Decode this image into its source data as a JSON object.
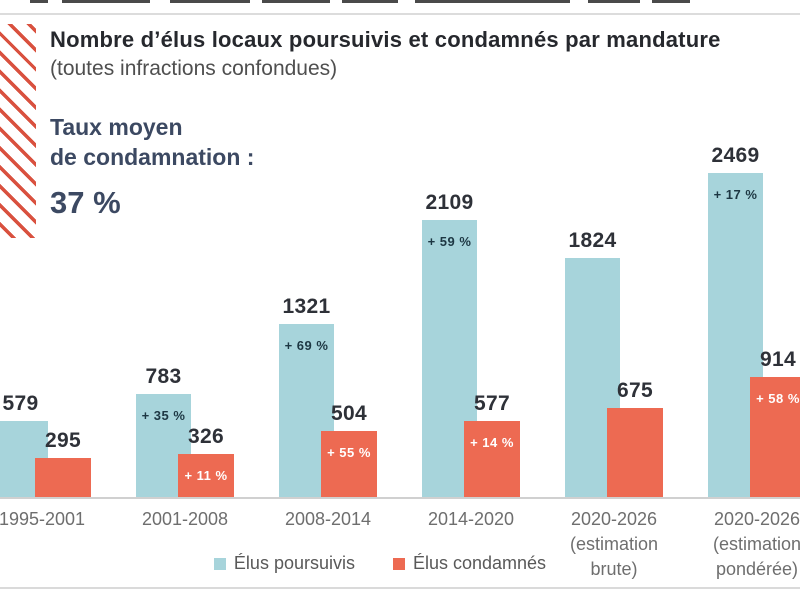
{
  "header": {
    "title": "Nombre d’élus locaux poursuivis et condamnés par mandature",
    "subtitle": "(toutes infractions confondues)"
  },
  "stat": {
    "label_line1": "Taux moyen",
    "label_line2": "de condamnation :",
    "value": "37 %"
  },
  "chart_data": {
    "type": "bar",
    "title": "Nombre d’élus locaux poursuivis et condamnés par mandature (toutes infractions confondues)",
    "categories": [
      "1995-2001",
      "2001-2008",
      "2008-2014",
      "2014-2020",
      "2020-2026 (estimation brute)",
      "2020-2026 (estimation pondérée)"
    ],
    "category_label_lines": [
      [
        "1995-2001"
      ],
      [
        "2001-2008"
      ],
      [
        "2008-2014"
      ],
      [
        "2014-2020"
      ],
      [
        "2020-2026",
        "(estimation",
        "brute)"
      ],
      [
        "2020-2026",
        "(estimation",
        "pondérée)"
      ]
    ],
    "series": [
      {
        "name": "Élus poursuivis",
        "color": "#a7d4db",
        "values": [
          579,
          783,
          1321,
          2109,
          1824,
          2469
        ],
        "pct_labels": [
          "",
          "+ 35 %",
          "+ 69 %",
          "+ 59 %",
          "",
          "+ 17 %"
        ],
        "pct_text_color": "#1d3743"
      },
      {
        "name": "Élus condamnés",
        "color": "#ed6a52",
        "values": [
          295,
          326,
          504,
          577,
          675,
          914
        ],
        "pct_labels": [
          "",
          "+ 11 %",
          "+ 55 %",
          "+ 14 %",
          "",
          "+ 58 %"
        ],
        "pct_text_color": "#ffffff"
      }
    ],
    "value_labels_shown": true,
    "legend_position": "bottom",
    "grid": false,
    "ylim": [
      0,
      2600
    ]
  },
  "colors": {
    "accent_red": "#d9513f",
    "navy_text": "#3c4962",
    "axis_label": "#6e6e6e"
  }
}
